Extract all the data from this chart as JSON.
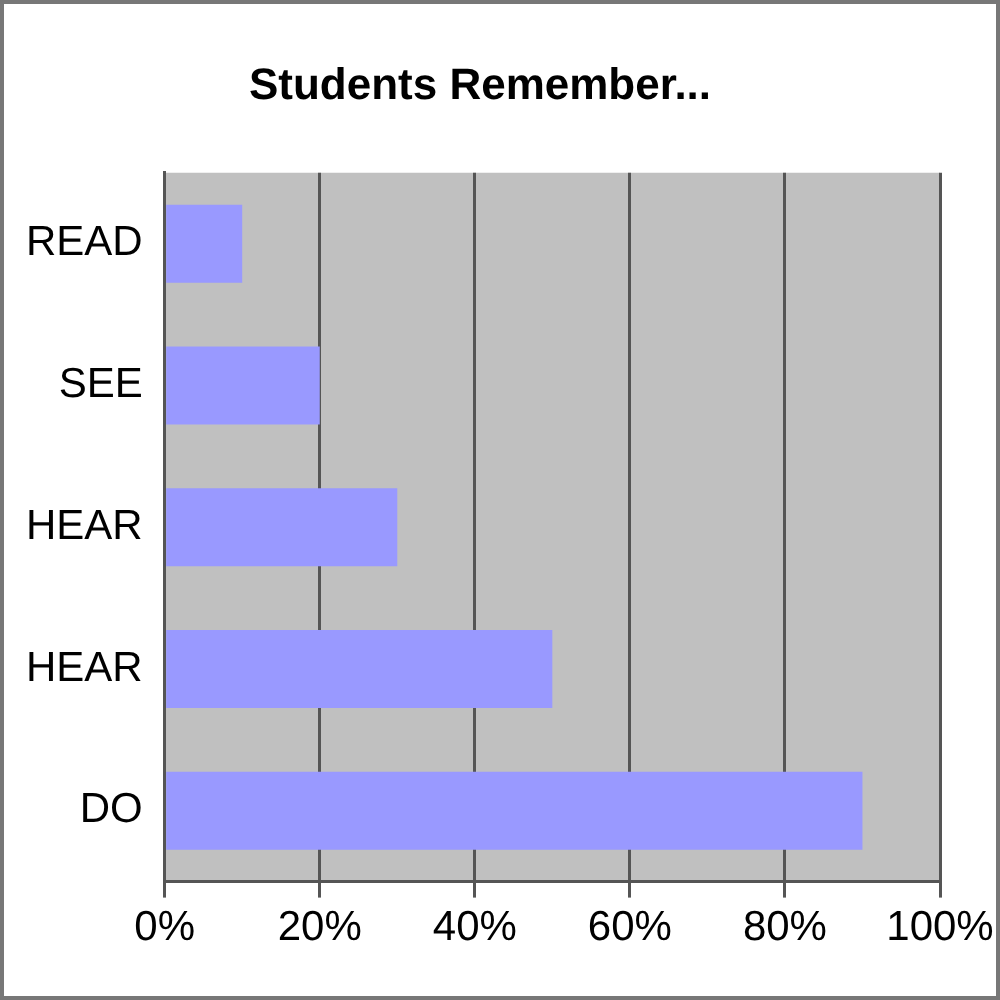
{
  "chart_data": {
    "type": "bar",
    "orientation": "horizontal",
    "title": "Students Remember...",
    "categories": [
      "READ",
      "SEE",
      "HEAR",
      "HEAR",
      "DO"
    ],
    "values": [
      10,
      20,
      30,
      50,
      90
    ],
    "color": "#9999ff",
    "xlim": [
      0,
      100
    ],
    "xticks": [
      {
        "value": 0,
        "label": "0%"
      },
      {
        "value": 20,
        "label": "20%"
      },
      {
        "value": 40,
        "label": "40%"
      },
      {
        "value": 60,
        "label": "60%"
      },
      {
        "value": 80,
        "label": "80%"
      },
      {
        "value": 100,
        "label": "100%"
      }
    ],
    "grid": "x",
    "legend": false
  }
}
